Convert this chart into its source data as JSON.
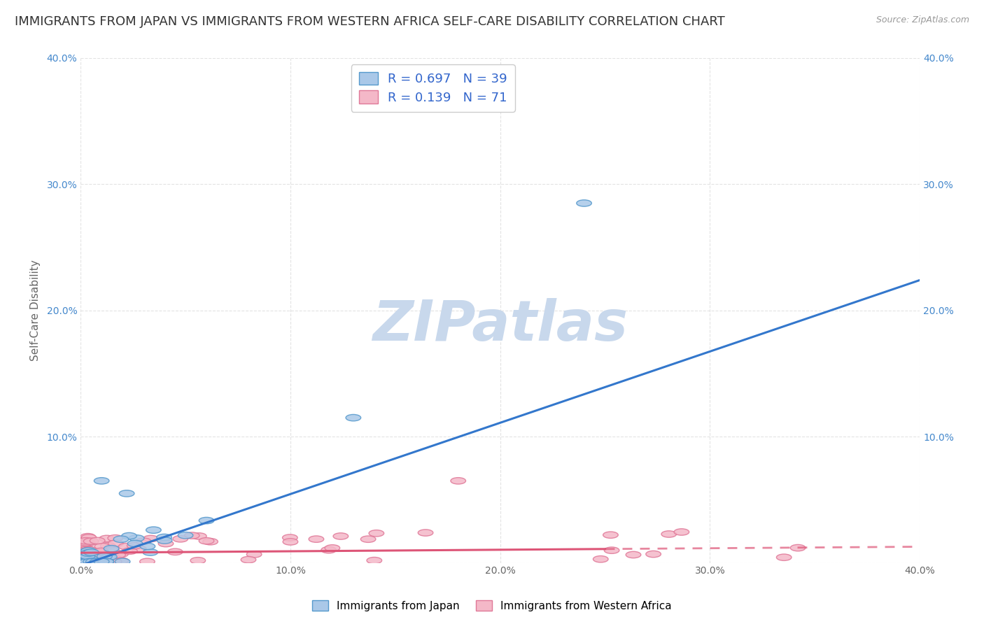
{
  "title": "IMMIGRANTS FROM JAPAN VS IMMIGRANTS FROM WESTERN AFRICA SELF-CARE DISABILITY CORRELATION CHART",
  "source": "Source: ZipAtlas.com",
  "ylabel": "Self-Care Disability",
  "xlim": [
    0.0,
    0.4
  ],
  "ylim": [
    0.0,
    0.4
  ],
  "xtick_vals": [
    0.0,
    0.1,
    0.2,
    0.3,
    0.4
  ],
  "ytick_vals": [
    0.0,
    0.1,
    0.2,
    0.3,
    0.4
  ],
  "xticklabels": [
    "0.0%",
    "10.0%",
    "20.0%",
    "30.0%",
    "40.0%"
  ],
  "yticklabels": [
    "",
    "10.0%",
    "20.0%",
    "30.0%",
    "40.0%"
  ],
  "japan_color": "#aac8e8",
  "japan_edge_color": "#5599cc",
  "western_africa_color": "#f4b8c8",
  "western_africa_edge_color": "#e07898",
  "japan_line_color": "#3377cc",
  "western_africa_line_color": "#dd5577",
  "legend_r_japan": "R = 0.697",
  "legend_n_japan": "N = 39",
  "legend_r_western": "R = 0.139",
  "legend_n_western": "N = 71",
  "watermark": "ZIPatlas",
  "background_color": "#ffffff",
  "grid_color": "#dddddd",
  "title_fontsize": 13,
  "axis_label_fontsize": 11,
  "tick_fontsize": 10,
  "legend_fontsize": 13,
  "watermark_color": "#c8d8ec",
  "watermark_fontsize": 58,
  "japan_trend_slope": 0.565,
  "japan_trend_intercept": -0.002,
  "wa_trend_slope": 0.012,
  "wa_trend_intercept": 0.008
}
